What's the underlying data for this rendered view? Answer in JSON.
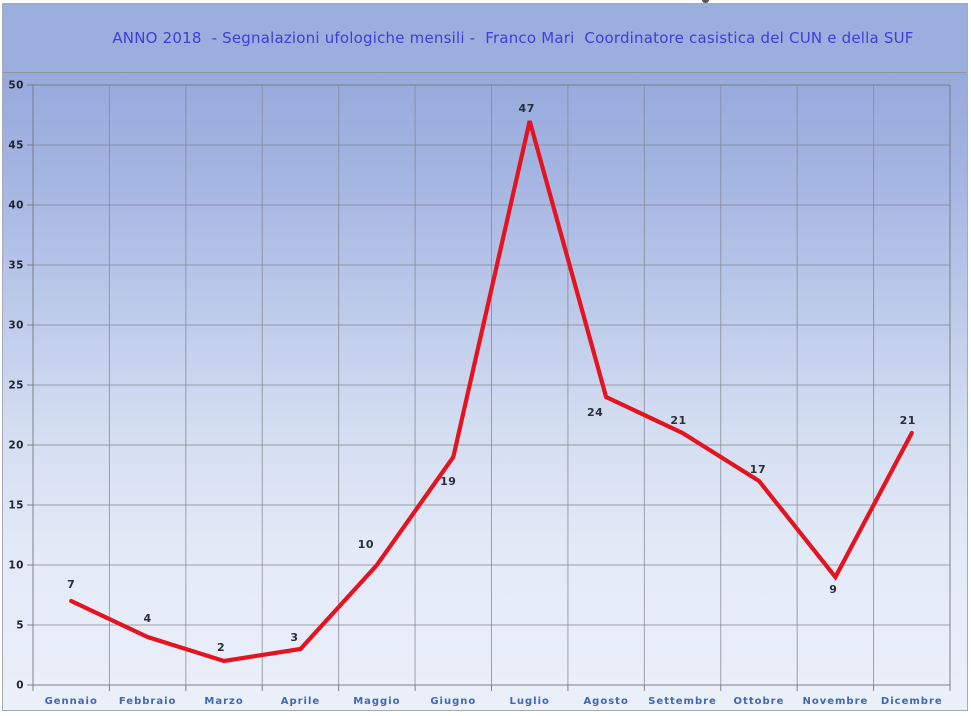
{
  "title": {
    "text": "ANNO 2018  - Segnalazioni ufologiche mensili -  Franco Mari  Coordinatore casistica del CUN e della SUF",
    "color": "#3c3fd8"
  },
  "chart_data": {
    "type": "line",
    "title": "ANNO 2018 - Segnalazioni ufologiche mensili - Franco Mari Coordinatore casistica del CUN e della SUF",
    "categories": [
      "Gennaio",
      "Febbraio",
      "Marzo",
      "Aprile",
      "Maggio",
      "Giugno",
      "Luglio",
      "Agosto",
      "Settembre",
      "Ottobre",
      "Novembre",
      "Dicembre"
    ],
    "values": [
      7,
      4,
      2,
      3,
      10,
      19,
      47,
      24,
      21,
      17,
      9,
      21
    ],
    "xlabel": "",
    "ylabel": "",
    "ylim": [
      0,
      50
    ],
    "yticks": [
      0,
      5,
      10,
      15,
      20,
      25,
      30,
      35,
      40,
      45,
      50
    ],
    "grid": true,
    "legend": false,
    "data_labels": true,
    "colors": {
      "line": "#e4131f",
      "title_band_bg": "#9bafdf",
      "plot_gradient_top": "#97aadc",
      "plot_gradient_bottom": "#ebf0fa",
      "gridline": "#83878f",
      "ytick_label": "#21242d",
      "xtick_label": "#3e68b4",
      "data_label": "#2c2e38"
    }
  }
}
